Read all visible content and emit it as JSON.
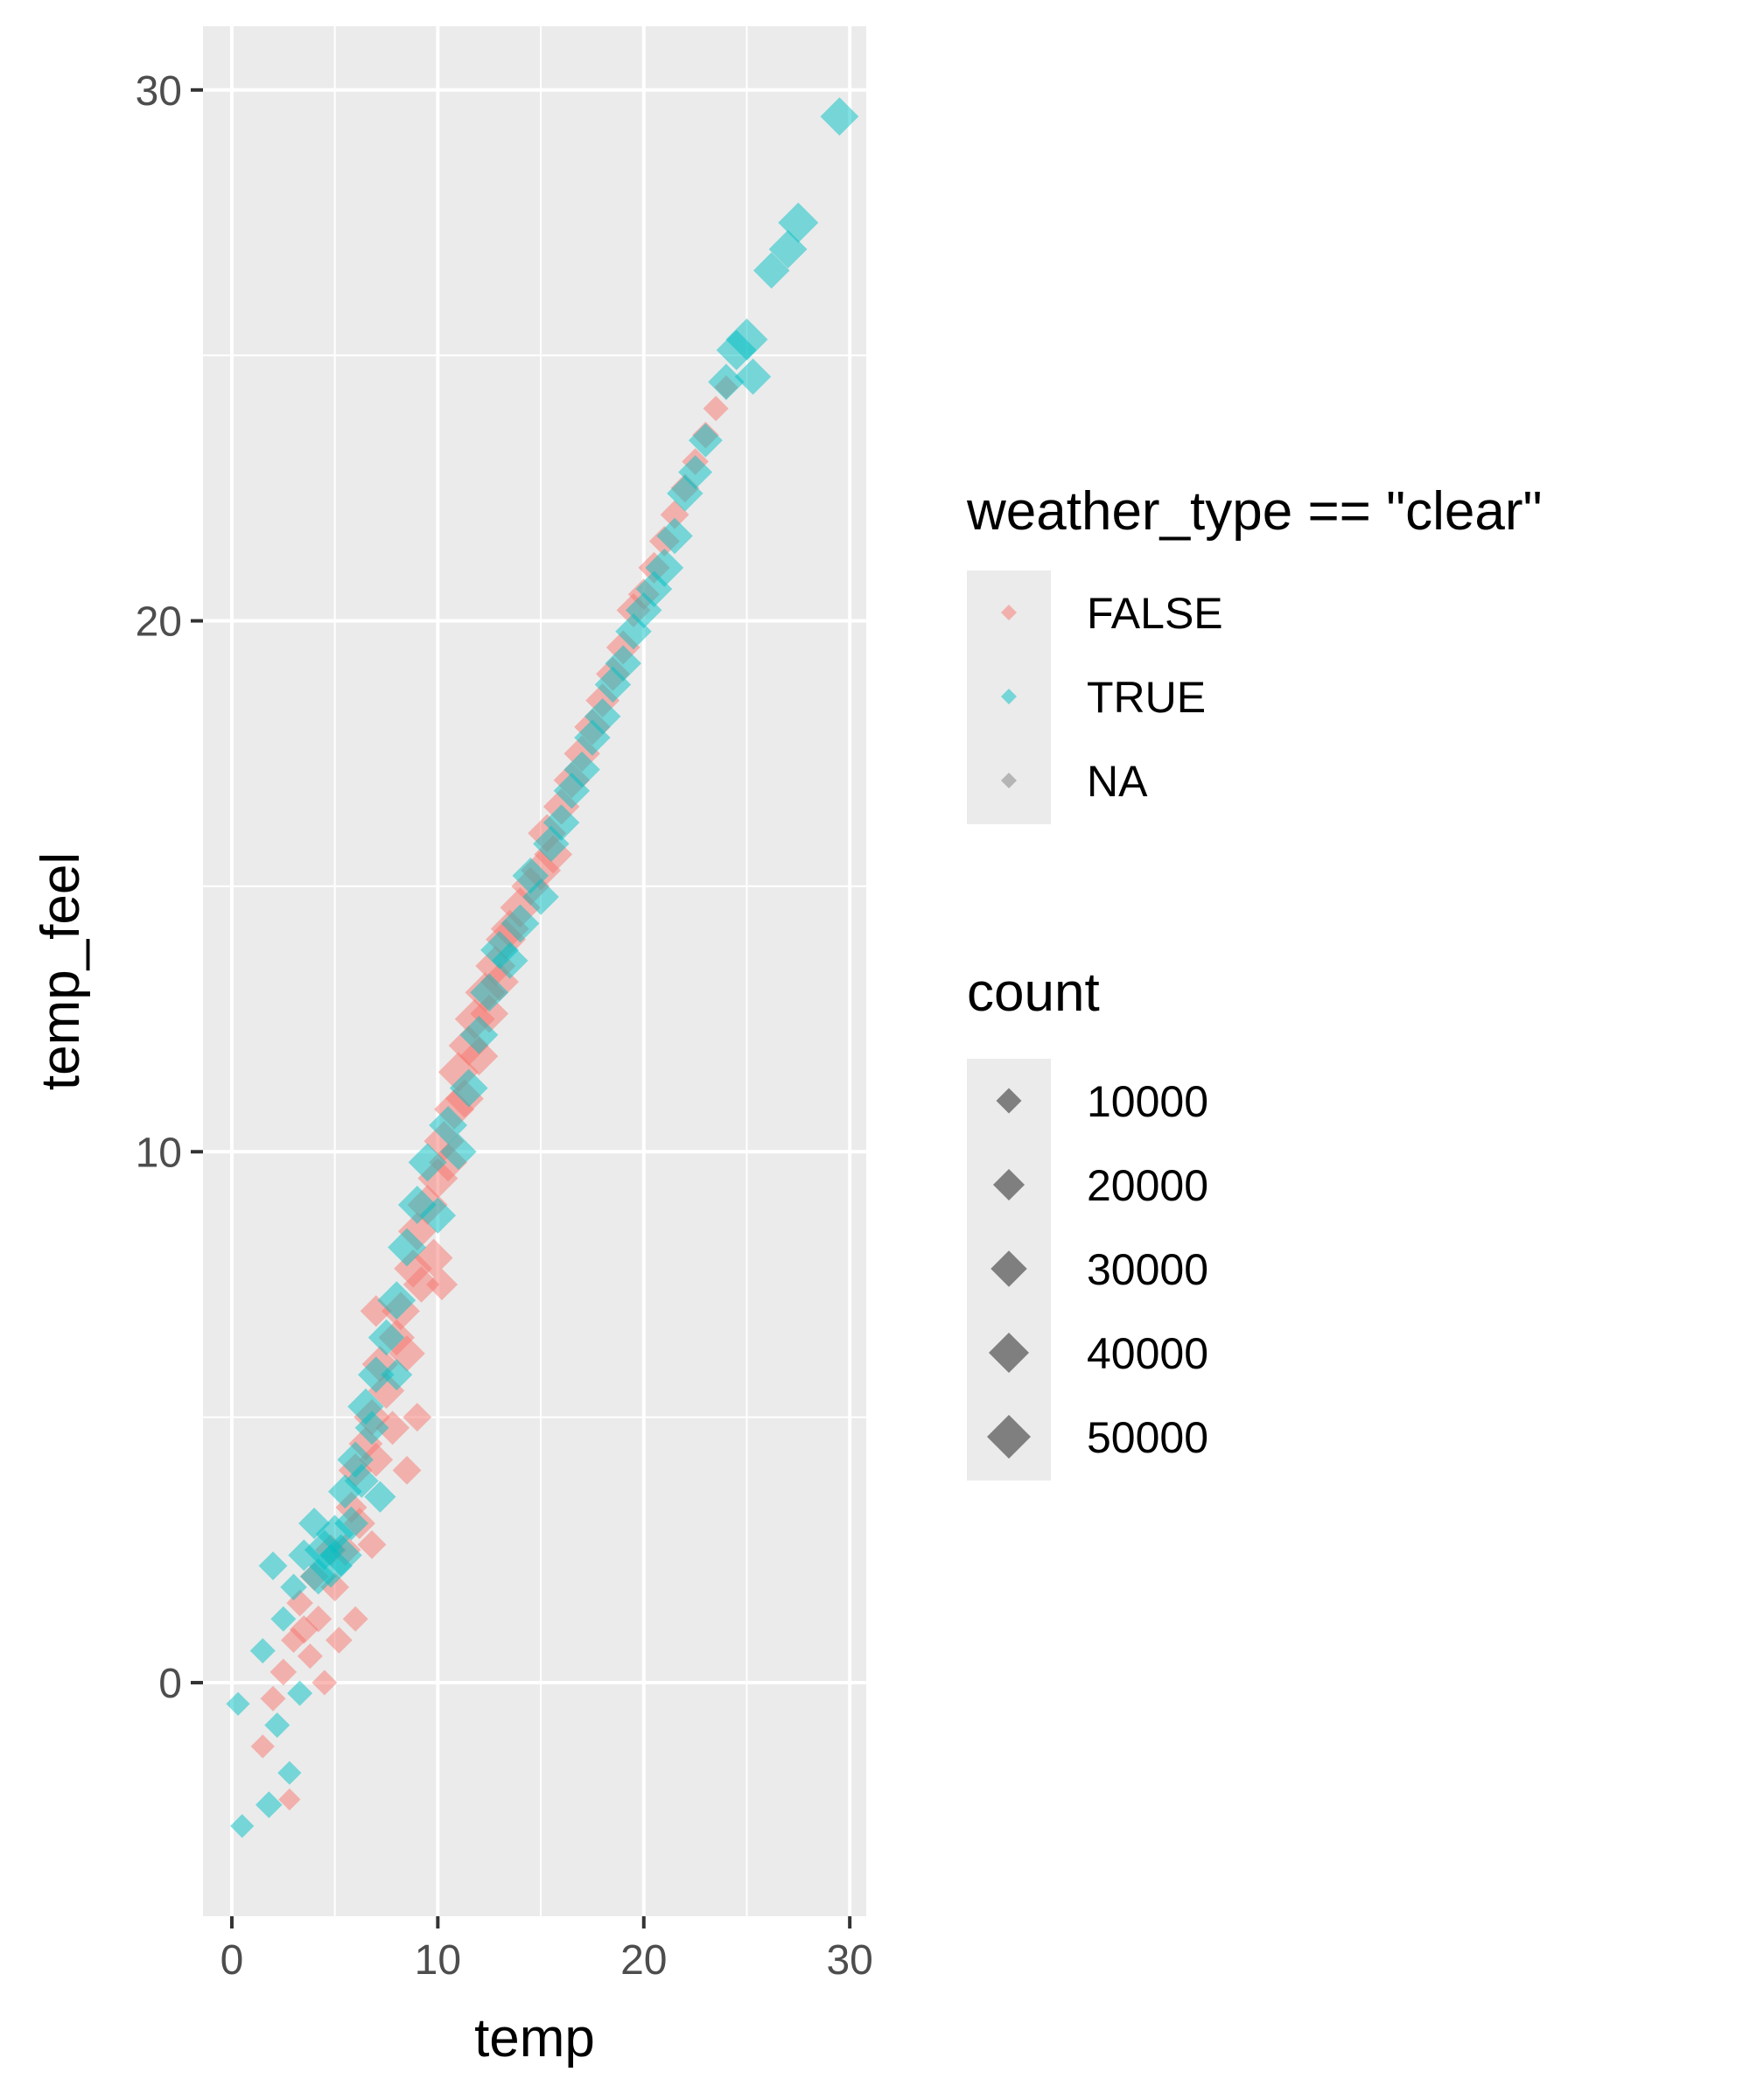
{
  "chart_data": {
    "type": "scatter",
    "title": "",
    "xlabel": "temp",
    "ylabel": "temp_feel",
    "xlim": [
      -1.4,
      30.8
    ],
    "ylim": [
      -4.4,
      31.2
    ],
    "xticks": [
      0,
      10,
      20,
      30
    ],
    "yticks": [
      0,
      10,
      20,
      30
    ],
    "grid": true,
    "legend_position": "right",
    "marker": "diamond",
    "point_alpha": 0.5,
    "color_legend": {
      "title": "weather_type == \"clear\"",
      "entries": [
        {
          "label": "FALSE",
          "color": "#F8766D"
        },
        {
          "label": "TRUE",
          "color": "#00BFC4"
        },
        {
          "label": "NA",
          "color": "#7F7F7F"
        }
      ]
    },
    "size_legend": {
      "title": "count",
      "entries": [
        {
          "label": "10000",
          "value": 10000
        },
        {
          "label": "20000",
          "value": 20000
        },
        {
          "label": "30000",
          "value": 30000
        },
        {
          "label": "40000",
          "value": 40000
        },
        {
          "label": "50000",
          "value": 50000
        }
      ]
    },
    "series": [
      {
        "group": "FALSE",
        "color": "#F8766D",
        "points": [
          [
            1.5,
            -1.2,
            8000
          ],
          [
            2.0,
            -0.3,
            10000
          ],
          [
            2.5,
            0.2,
            12000
          ],
          [
            2.8,
            -2.2,
            6000
          ],
          [
            3.0,
            0.8,
            10000
          ],
          [
            3.3,
            1.5,
            12000
          ],
          [
            3.5,
            1.0,
            15000
          ],
          [
            3.8,
            0.5,
            10000
          ],
          [
            4.0,
            2.0,
            15000
          ],
          [
            4.2,
            1.2,
            12000
          ],
          [
            4.5,
            0.0,
            10000
          ],
          [
            4.8,
            2.5,
            20000
          ],
          [
            5.0,
            1.8,
            15000
          ],
          [
            5.5,
            2.5,
            20000
          ],
          [
            5.8,
            3.3,
            20000
          ],
          [
            6.0,
            4.0,
            25000
          ],
          [
            6.2,
            3.0,
            20000
          ],
          [
            6.5,
            4.5,
            25000
          ],
          [
            6.8,
            5.0,
            30000
          ],
          [
            7.0,
            4.2,
            25000
          ],
          [
            7.2,
            6.0,
            30000
          ],
          [
            7.5,
            5.5,
            30000
          ],
          [
            7.8,
            4.8,
            25000
          ],
          [
            8.0,
            6.5,
            30000
          ],
          [
            8.2,
            7.0,
            35000
          ],
          [
            8.5,
            6.2,
            30000
          ],
          [
            8.8,
            7.8,
            35000
          ],
          [
            9.0,
            8.5,
            35000
          ],
          [
            9.2,
            7.5,
            30000
          ],
          [
            9.5,
            9.0,
            40000
          ],
          [
            9.8,
            8.0,
            35000
          ],
          [
            10.0,
            9.5,
            40000
          ],
          [
            10.3,
            10.2,
            40000
          ],
          [
            10.5,
            9.8,
            35000
          ],
          [
            10.8,
            10.8,
            40000
          ],
          [
            11.0,
            11.5,
            40000
          ],
          [
            11.3,
            11.0,
            35000
          ],
          [
            11.5,
            12.0,
            40000
          ],
          [
            11.8,
            12.5,
            40000
          ],
          [
            12.0,
            11.8,
            35000
          ],
          [
            12.3,
            13.0,
            40000
          ],
          [
            12.5,
            12.6,
            35000
          ],
          [
            12.8,
            13.5,
            40000
          ],
          [
            13.0,
            13.2,
            35000
          ],
          [
            13.3,
            14.0,
            40000
          ],
          [
            13.5,
            14.2,
            35000
          ],
          [
            14.0,
            14.6,
            40000
          ],
          [
            14.5,
            15.0,
            35000
          ],
          [
            15.0,
            15.3,
            40000
          ],
          [
            15.3,
            16.0,
            35000
          ],
          [
            15.6,
            15.6,
            35000
          ],
          [
            16.0,
            16.5,
            30000
          ],
          [
            16.5,
            17.0,
            30000
          ],
          [
            17.0,
            17.5,
            30000
          ],
          [
            17.5,
            18.0,
            30000
          ],
          [
            18.0,
            18.5,
            25000
          ],
          [
            18.5,
            19.0,
            25000
          ],
          [
            19.0,
            19.5,
            25000
          ],
          [
            19.5,
            20.2,
            25000
          ],
          [
            20.0,
            20.5,
            20000
          ],
          [
            20.5,
            21.0,
            20000
          ],
          [
            21.0,
            21.5,
            18000
          ],
          [
            21.5,
            22.0,
            15000
          ],
          [
            22.0,
            22.5,
            15000
          ],
          [
            22.5,
            23.0,
            12000
          ],
          [
            23.0,
            23.5,
            12000
          ],
          [
            23.5,
            24.0,
            10000
          ],
          [
            24.0,
            24.4,
            8000
          ],
          [
            5.2,
            0.8,
            12000
          ],
          [
            6.8,
            2.6,
            15000
          ],
          [
            8.5,
            4.0,
            15000
          ],
          [
            10.2,
            7.5,
            20000
          ],
          [
            7.0,
            7.0,
            20000
          ],
          [
            9.0,
            5.0,
            15000
          ],
          [
            6.0,
            1.2,
            10000
          ]
        ]
      },
      {
        "group": "TRUE",
        "color": "#00BFC4",
        "points": [
          [
            0.3,
            -0.4,
            8000
          ],
          [
            0.5,
            -2.7,
            8000
          ],
          [
            1.5,
            0.6,
            10000
          ],
          [
            1.8,
            -2.3,
            12000
          ],
          [
            2.0,
            2.2,
            15000
          ],
          [
            2.2,
            -0.8,
            10000
          ],
          [
            2.5,
            1.2,
            10000
          ],
          [
            2.8,
            -1.7,
            8000
          ],
          [
            3.0,
            1.8,
            12000
          ],
          [
            3.3,
            -0.2,
            10000
          ],
          [
            3.5,
            2.4,
            20000
          ],
          [
            4.0,
            3.0,
            20000
          ],
          [
            4.2,
            2.0,
            30000
          ],
          [
            4.5,
            2.5,
            40000
          ],
          [
            4.8,
            2.2,
            50000
          ],
          [
            5.0,
            2.8,
            35000
          ],
          [
            5.3,
            2.4,
            45000
          ],
          [
            5.5,
            3.6,
            25000
          ],
          [
            5.8,
            3.0,
            25000
          ],
          [
            6.0,
            4.2,
            30000
          ],
          [
            6.3,
            3.8,
            25000
          ],
          [
            6.5,
            5.2,
            30000
          ],
          [
            6.8,
            4.8,
            25000
          ],
          [
            7.0,
            5.8,
            30000
          ],
          [
            7.5,
            6.5,
            30000
          ],
          [
            8.0,
            7.2,
            35000
          ],
          [
            8.5,
            8.2,
            35000
          ],
          [
            9.0,
            9.0,
            35000
          ],
          [
            9.5,
            9.8,
            35000
          ],
          [
            10.0,
            8.8,
            30000
          ],
          [
            10.5,
            10.5,
            35000
          ],
          [
            11.0,
            10.0,
            30000
          ],
          [
            11.5,
            11.2,
            35000
          ],
          [
            12.0,
            12.2,
            35000
          ],
          [
            12.5,
            13.0,
            35000
          ],
          [
            13.0,
            13.8,
            35000
          ],
          [
            13.5,
            13.6,
            30000
          ],
          [
            14.0,
            14.3,
            35000
          ],
          [
            14.5,
            15.2,
            30000
          ],
          [
            15.0,
            14.8,
            30000
          ],
          [
            15.5,
            15.8,
            30000
          ],
          [
            16.0,
            16.2,
            30000
          ],
          [
            16.5,
            16.8,
            30000
          ],
          [
            17.0,
            17.2,
            30000
          ],
          [
            17.5,
            17.8,
            30000
          ],
          [
            18.0,
            18.2,
            30000
          ],
          [
            18.5,
            18.8,
            30000
          ],
          [
            19.0,
            19.2,
            30000
          ],
          [
            19.5,
            19.8,
            30000
          ],
          [
            20.0,
            20.2,
            30000
          ],
          [
            20.5,
            20.6,
            30000
          ],
          [
            21.0,
            21.0,
            35000
          ],
          [
            21.5,
            21.6,
            30000
          ],
          [
            22.0,
            22.4,
            30000
          ],
          [
            22.5,
            22.8,
            25000
          ],
          [
            23.0,
            23.4,
            25000
          ],
          [
            24.0,
            24.5,
            30000
          ],
          [
            24.5,
            25.1,
            40000
          ],
          [
            25.0,
            25.3,
            45000
          ],
          [
            25.3,
            24.6,
            30000
          ],
          [
            26.2,
            26.6,
            30000
          ],
          [
            27.0,
            27.0,
            35000
          ],
          [
            27.5,
            27.5,
            40000
          ],
          [
            29.5,
            29.5,
            35000
          ],
          [
            7.2,
            3.5,
            20000
          ],
          [
            8.0,
            5.8,
            20000
          ]
        ]
      }
    ]
  }
}
